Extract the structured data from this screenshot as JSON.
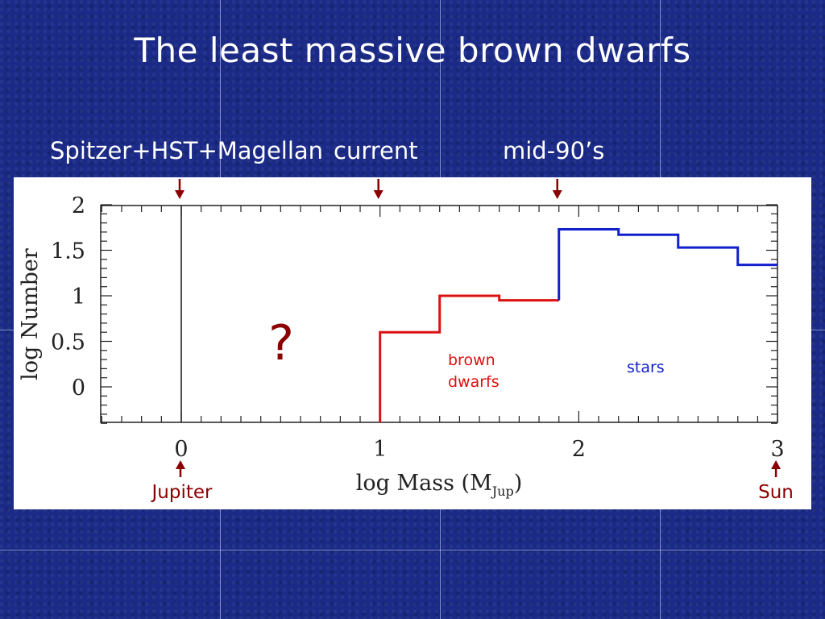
{
  "slide": {
    "title": "The least massive brown dwarfs"
  },
  "top_labels": {
    "spitzer": "Spitzer+HST+Magellan",
    "current": "current",
    "mid90s": "mid-90’s"
  },
  "bottom_labels": {
    "jupiter": "Jupiter",
    "sun": "Sun"
  },
  "annotations": {
    "question": "?",
    "brown_dwarfs_line1": "brown",
    "brown_dwarfs_line2": "dwarfs",
    "stars": "stars"
  },
  "colors": {
    "brown_dwarfs": "#dd1111",
    "stars": "#1020cc",
    "arrows": "#8b0000",
    "axis": "#222222"
  },
  "chart_data": {
    "type": "line",
    "xlabel": "log Mass (M",
    "xlabel_sub": "Jup",
    "xlabel_close": ")",
    "ylabel": "log Number",
    "xlim": [
      -0.4,
      3
    ],
    "ylim": [
      -0.4,
      2.05
    ],
    "x_ticks": [
      "0",
      "1",
      "2",
      "3"
    ],
    "y_ticks": [
      "0",
      "0.5",
      "1",
      "1.5",
      "2"
    ],
    "vertical_line_x": 0,
    "series": [
      {
        "name": "brown dwarfs",
        "step_edges": [
          1.0,
          1.3,
          1.6,
          1.9
        ],
        "values": [
          0.6,
          1.0,
          0.95
        ]
      },
      {
        "name": "stars",
        "step_edges": [
          1.9,
          2.2,
          2.5,
          2.8,
          3.0
        ],
        "values": [
          1.73,
          1.67,
          1.53,
          1.34
        ]
      }
    ],
    "arrows_x": [
      0,
      1,
      1.9
    ]
  }
}
